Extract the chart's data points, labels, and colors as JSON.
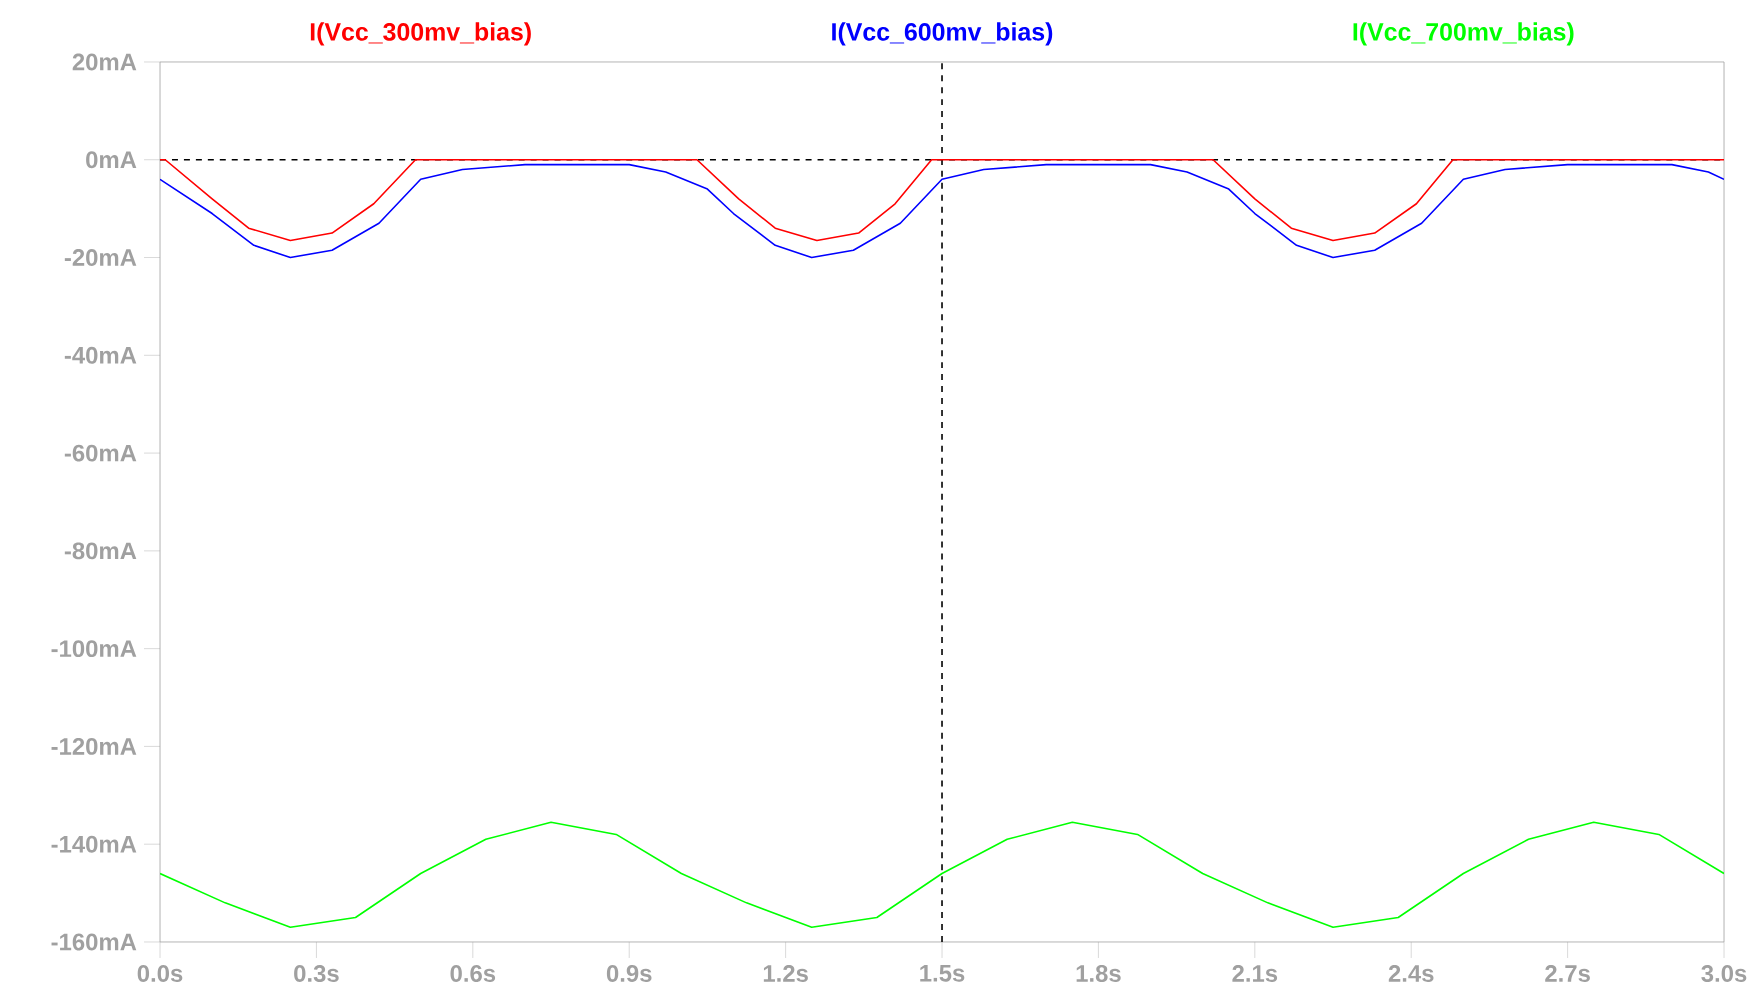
{
  "chart_data": {
    "type": "line",
    "grid": false,
    "marker": "none",
    "line_style": "solid",
    "xlim": [
      0,
      3
    ],
    "ylim": [
      -160,
      20
    ],
    "xticks": [
      {
        "value": 0,
        "label": "0.0s"
      },
      {
        "value": 0.3,
        "label": "0.3s"
      },
      {
        "value": 0.6,
        "label": "0.6s"
      },
      {
        "value": 0.9,
        "label": "0.9s"
      },
      {
        "value": 1.2,
        "label": "1.2s"
      },
      {
        "value": 1.5,
        "label": "1.5s"
      },
      {
        "value": 1.8,
        "label": "1.8s"
      },
      {
        "value": 2.1,
        "label": "2.1s"
      },
      {
        "value": 2.4,
        "label": "2.4s"
      },
      {
        "value": 2.7,
        "label": "2.7s"
      },
      {
        "value": 3.0,
        "label": "3.0s"
      }
    ],
    "yticks": [
      {
        "value": 20,
        "label": "20mA"
      },
      {
        "value": 0,
        "label": "0mA"
      },
      {
        "value": -20,
        "label": "-20mA"
      },
      {
        "value": -40,
        "label": "-40mA"
      },
      {
        "value": -60,
        "label": "-60mA"
      },
      {
        "value": -80,
        "label": "-80mA"
      },
      {
        "value": -100,
        "label": "-100mA"
      },
      {
        "value": -120,
        "label": "-120mA"
      },
      {
        "value": -140,
        "label": "-140mA"
      },
      {
        "value": -160,
        "label": "-160mA"
      }
    ],
    "ref_lines": [
      {
        "axis": "y",
        "value": 0,
        "color": "#000000",
        "line_style": "dashed"
      },
      {
        "axis": "x",
        "value": 1.5,
        "color": "#000000",
        "line_style": "dashed"
      }
    ],
    "series": [
      {
        "name": "I(Vcc_300mv_bias)",
        "color": "#ff0000",
        "x": [
          0,
          0.01,
          0.1,
          0.17,
          0.25,
          0.33,
          0.41,
          0.49,
          1.03,
          1.11,
          1.18,
          1.26,
          1.34,
          1.41,
          1.48,
          2.02,
          2.1,
          2.17,
          2.25,
          2.33,
          2.41,
          2.48,
          3.0
        ],
        "values": [
          0,
          0,
          -8,
          -14,
          -16.5,
          -15,
          -9,
          0,
          0,
          -8,
          -14,
          -16.5,
          -15,
          -9,
          0,
          0,
          -8,
          -14,
          -16.5,
          -15,
          -9,
          0,
          0
        ]
      },
      {
        "name": "I(Vcc_600mv_bias)",
        "color": "#0000ff",
        "x": [
          0,
          0.1,
          0.18,
          0.25,
          0.33,
          0.42,
          0.5,
          0.58,
          0.7,
          0.9,
          0.97,
          1.05,
          1.1,
          1.18,
          1.25,
          1.33,
          1.42,
          1.5,
          1.58,
          1.7,
          1.9,
          1.97,
          2.05,
          2.1,
          2.18,
          2.25,
          2.33,
          2.42,
          2.5,
          2.58,
          2.7,
          2.9,
          2.97,
          3.0
        ],
        "values": [
          -4,
          -11,
          -17.5,
          -20,
          -18.5,
          -13,
          -4,
          -2,
          -1,
          -1,
          -2.5,
          -6,
          -11,
          -17.5,
          -20,
          -18.5,
          -13,
          -4,
          -2,
          -1,
          -1,
          -2.5,
          -6,
          -11,
          -17.5,
          -20,
          -18.5,
          -13,
          -4,
          -2,
          -1,
          -1,
          -2.5,
          -4
        ]
      },
      {
        "name": "I(Vcc_700mv_bias)",
        "color": "#00ff00",
        "x": [
          0,
          0.125,
          0.25,
          0.375,
          0.5,
          0.625,
          0.75,
          0.875,
          1.0,
          1.125,
          1.25,
          1.375,
          1.5,
          1.625,
          1.75,
          1.875,
          2.0,
          2.125,
          2.25,
          2.375,
          2.5,
          2.625,
          2.75,
          2.875,
          3.0
        ],
        "values": [
          -146,
          -152,
          -157,
          -155,
          -146,
          -139,
          -135.5,
          -138,
          -146,
          -152,
          -157,
          -155,
          -146,
          -139,
          -135.5,
          -138,
          -146,
          -152,
          -157,
          -155,
          -146,
          -139,
          -135.5,
          -138,
          -146
        ]
      }
    ]
  }
}
